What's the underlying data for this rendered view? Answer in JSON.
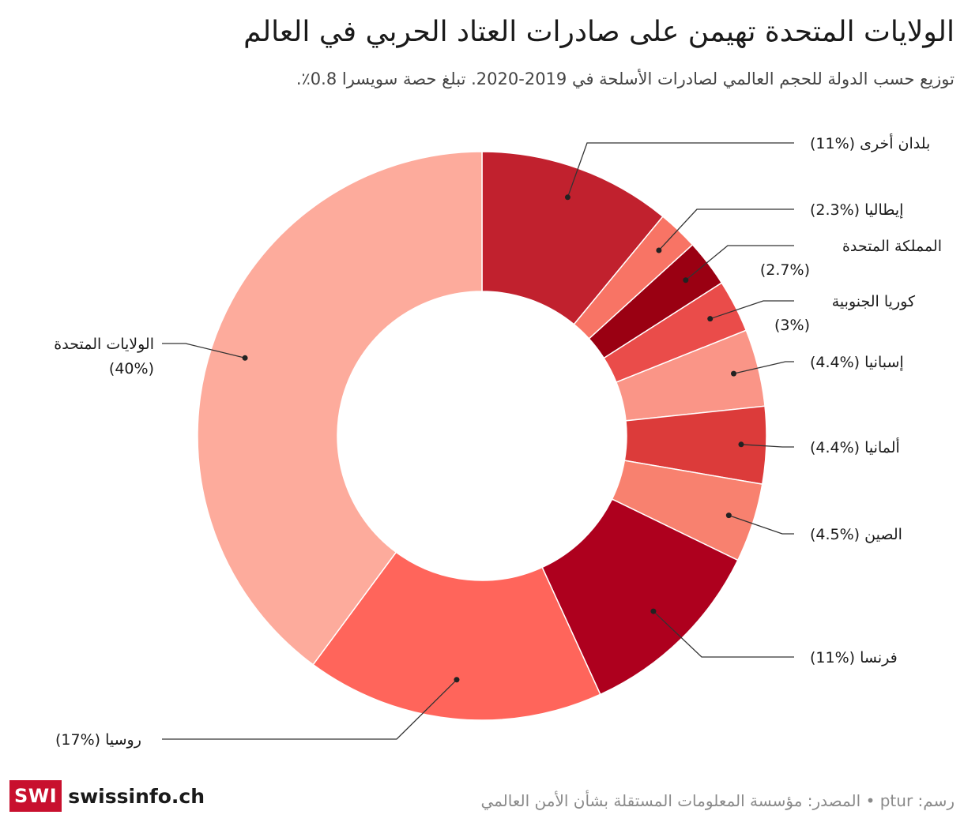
{
  "header": {
    "title": "الولايات المتحدة تهيمن على صادرات العتاد الحربي في العالم",
    "subtitle": "توزيع حسب الدولة للحجم العالمي لصادرات الأسلحة في 2019-2020. تبلغ حصة سويسرا 0.8٪."
  },
  "chart_data": {
    "type": "pie",
    "variant": "donut",
    "title": "الولايات المتحدة تهيمن على صادرات العتاد الحربي في العالم",
    "slices": [
      {
        "name": "بلدان أخرى",
        "value": 11,
        "label": "(11%)",
        "color": "#c1212e"
      },
      {
        "name": "إيطاليا",
        "value": 2.3,
        "label": "(2.3%)",
        "color": "#f87465"
      },
      {
        "name": "المملكة المتحدة",
        "value": 2.7,
        "label": "(2.7%)",
        "color": "#9a0012"
      },
      {
        "name": "كوريا الجنوبية",
        "value": 3,
        "label": "(3%)",
        "color": "#ea4c4a"
      },
      {
        "name": "إسبانيا",
        "value": 4.4,
        "label": "(4.4%)",
        "color": "#fa9587"
      },
      {
        "name": "ألمانيا",
        "value": 4.4,
        "label": "(4.4%)",
        "color": "#dc3b3a"
      },
      {
        "name": "الصين",
        "value": 4.5,
        "label": "(4.5%)",
        "color": "#f8816f"
      },
      {
        "name": "فرنسا",
        "value": 11,
        "label": "(11%)",
        "color": "#ae001e"
      },
      {
        "name": "روسيا",
        "value": 17,
        "label": "(17%)",
        "color": "#ff655b"
      },
      {
        "name": "الولايات المتحدة",
        "value": 40,
        "label": "(40%)",
        "color": "#fdab9c"
      }
    ]
  },
  "footer": {
    "source": "رسم: ptur • المصدر: مؤسسة المعلومات المستقلة بشأن الأمن العالمي",
    "logo_mark": "SWI",
    "logo_text": "swissinfo.ch"
  }
}
